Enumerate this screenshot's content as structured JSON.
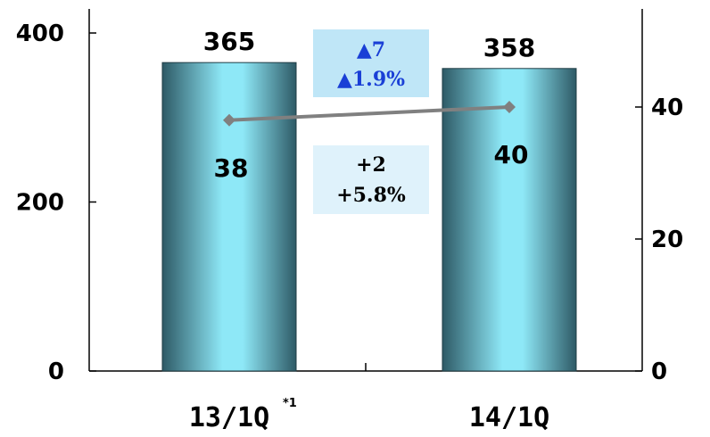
{
  "chart_data": {
    "type": "bar",
    "categories": [
      "13/1Q",
      "14/1Q"
    ],
    "category_footnote": "*1",
    "series": [
      {
        "values": [
          365,
          358
        ],
        "axis": "left",
        "render": "bar"
      },
      {
        "values": [
          38,
          40
        ],
        "axis": "right",
        "render": "line"
      }
    ],
    "bar_labels": [
      "365",
      "358"
    ],
    "line_labels": [
      "38",
      "40"
    ],
    "left_axis": {
      "ylim": [
        0,
        400
      ],
      "ticks": [
        "0",
        "200",
        "400"
      ],
      "tick_values": [
        0,
        200,
        400
      ]
    },
    "right_axis": {
      "ylim": [
        0,
        55
      ],
      "ticks": [
        "0",
        "20",
        "40"
      ],
      "tick_values": [
        0,
        20,
        40
      ]
    },
    "grid": false,
    "annotations": {
      "bar_change": {
        "lines": [
          "▲7",
          "▲1.9%"
        ],
        "color": "#1a3fd6",
        "background": "#bfe6f7"
      },
      "line_change": {
        "lines": [
          "+2",
          "+5.8%"
        ],
        "color": "#000000",
        "background": "#dff2fb"
      }
    },
    "colors": {
      "bar_edge": "#2e5a66",
      "bar_center": "#8ee8f7",
      "line": "#808080"
    }
  }
}
